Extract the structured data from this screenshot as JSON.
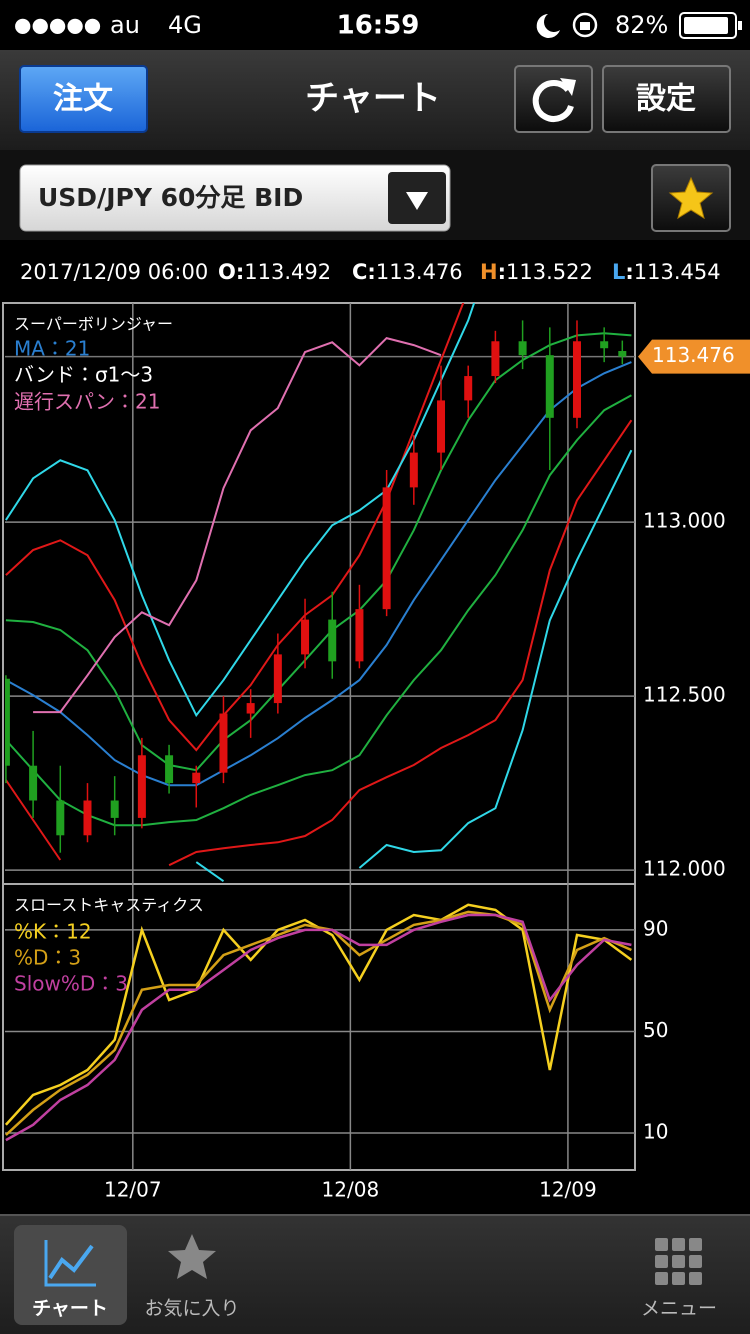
{
  "status_bar": {
    "signal": "●●●●●",
    "carrier": "au",
    "network": "4G",
    "time": "16:59",
    "battery": "82%"
  },
  "nav": {
    "order_button": "注文",
    "title": "チャート",
    "settings_button": "設定"
  },
  "selector": {
    "symbol": "USD/JPY 60分足 BID"
  },
  "quote": {
    "datetime": "2017/12/09 06:00",
    "separator": ":",
    "items": [
      {
        "label": "O",
        "value": 113.492,
        "color": "#ffffff"
      },
      {
        "label": "C",
        "value": 113.476,
        "color": "#ffffff"
      },
      {
        "label": "H",
        "value": 113.522,
        "color": "#f0902a"
      },
      {
        "label": "L",
        "value": 113.454,
        "color": "#4aa8f0"
      }
    ]
  },
  "chart_data": [
    {
      "type": "candlestick",
      "title": "スーパーボリンジャー",
      "xlim": [
        -14.1,
        55.4
      ],
      "xticks": [
        {
          "value": 0,
          "label": "12/07"
        },
        {
          "value": 24,
          "label": "12/08"
        },
        {
          "value": 48,
          "label": "12/09"
        }
      ],
      "ylim": [
        111.96,
        113.63
      ],
      "yticks": [
        {
          "value": 112,
          "label": "112.000"
        },
        {
          "value": 112.5,
          "label": "112.500"
        },
        {
          "value": 113,
          "label": "113.000"
        }
      ],
      "grid": true,
      "last_price": 113.476,
      "last_price_color": "#f0902a",
      "x": [
        -14,
        -11,
        -8,
        -5,
        -2,
        1,
        4,
        7,
        10,
        13,
        16,
        19,
        22,
        25,
        28,
        31,
        34,
        37,
        40,
        43,
        46,
        49,
        52,
        55
      ],
      "candles": {
        "up_color": "#e01010",
        "down_color": "#20a020",
        "x": [
          -14,
          -11,
          -8,
          -5,
          -2,
          1,
          4,
          7,
          10,
          13,
          16,
          19,
          22,
          25,
          28,
          31,
          34,
          37,
          40,
          43,
          46,
          49,
          52,
          54
        ],
        "open": [
          112.55,
          112.3,
          112.2,
          112.1,
          112.2,
          112.15,
          112.33,
          112.25,
          112.28,
          112.45,
          112.48,
          112.62,
          112.72,
          112.6,
          112.75,
          113.1,
          113.2,
          113.35,
          113.42,
          113.52,
          113.48,
          113.3,
          113.52,
          113.492
        ],
        "high": [
          112.56,
          112.4,
          112.3,
          112.25,
          112.27,
          112.38,
          112.36,
          112.3,
          112.5,
          112.52,
          112.68,
          112.78,
          112.8,
          112.82,
          113.15,
          113.25,
          113.45,
          113.45,
          113.55,
          113.58,
          113.56,
          113.58,
          113.56,
          113.522
        ],
        "low": [
          112.25,
          112.15,
          112.05,
          112.08,
          112.1,
          112.12,
          112.22,
          112.18,
          112.25,
          112.38,
          112.45,
          112.58,
          112.55,
          112.58,
          112.73,
          113.05,
          113.15,
          113.3,
          113.4,
          113.44,
          113.15,
          113.27,
          113.46,
          113.454
        ],
        "close": [
          112.3,
          112.2,
          112.1,
          112.2,
          112.15,
          112.33,
          112.25,
          112.28,
          112.45,
          112.48,
          112.62,
          112.72,
          112.6,
          112.75,
          113.1,
          113.2,
          113.35,
          113.42,
          113.52,
          113.48,
          113.3,
          113.52,
          113.5,
          113.476
        ]
      },
      "series": [
        {
          "name": "MA：21",
          "color": "#2a7fd0",
          "values": [
            112.546,
            112.503,
            112.454,
            112.388,
            112.316,
            112.273,
            112.244,
            112.244,
            112.287,
            112.33,
            112.379,
            112.437,
            112.489,
            112.546,
            112.647,
            112.776,
            112.891,
            113.006,
            113.121,
            113.221,
            113.322,
            113.385,
            113.428,
            113.46
          ]
        },
        {
          "name": "遅行スパン：21",
          "color": "#e070b0",
          "values": [
            null,
            112.454,
            112.454,
            112.56,
            112.67,
            112.741,
            112.704,
            112.833,
            113.098,
            113.264,
            113.328,
            113.489,
            113.517,
            113.451,
            113.529,
            113.509,
            113.48,
            null,
            null,
            null,
            null,
            null,
            null,
            null
          ]
        }
      ],
      "bands": {
        "name": "バンド：σ1〜3",
        "lines": [
          {
            "color": "#20b040",
            "values": [
              112.718,
              112.713,
              112.69,
              112.632,
              112.517,
              112.359,
              112.302,
              112.287,
              112.374,
              112.431,
              112.517,
              112.603,
              112.69,
              112.747,
              112.833,
              112.977,
              113.149,
              113.293,
              113.408,
              113.466,
              113.509,
              113.537,
              113.543,
              113.537
            ]
          },
          {
            "color": "#20b040",
            "values": [
              112.374,
              112.287,
              112.201,
              112.158,
              112.129,
              112.129,
              112.138,
              112.144,
              112.178,
              112.216,
              112.244,
              112.273,
              112.287,
              112.33,
              112.445,
              112.546,
              112.632,
              112.747,
              112.848,
              112.977,
              113.135,
              113.236,
              113.322,
              113.365
            ]
          },
          {
            "color": "#e01818",
            "values": [
              112.848,
              112.92,
              112.948,
              112.905,
              112.776,
              112.589,
              112.431,
              112.345,
              112.445,
              112.532,
              112.647,
              112.733,
              112.79,
              112.905,
              113.063,
              113.264,
              113.466,
              113.667,
              null,
              null,
              null,
              null,
              null,
              null
            ]
          },
          {
            "color": "#e01818",
            "values": [
              112.259,
              112.144,
              112.029,
              null,
              null,
              null,
              112.014,
              112.052,
              112.063,
              112.072,
              112.08,
              112.098,
              112.144,
              112.23,
              112.267,
              112.302,
              112.351,
              112.388,
              112.431,
              112.546,
              112.862,
              113.063,
              113.178,
              113.293
            ]
          },
          {
            "color": "#30d8e8",
            "values": [
              113.006,
              113.126,
              113.178,
              113.149,
              113.006,
              112.79,
              112.603,
              112.445,
              112.546,
              112.661,
              112.776,
              112.891,
              112.991,
              113.034,
              113.092,
              113.236,
              113.408,
              113.58,
              113.81,
              null,
              null,
              null,
              null,
              null
            ]
          },
          {
            "color": "#30d8e8",
            "values": [
              null,
              null,
              null,
              null,
              null,
              null,
              null,
              112.023,
              111.968,
              null,
              null,
              null,
              null,
              112.006,
              112.072,
              112.052,
              112.057,
              112.135,
              112.178,
              112.402,
              112.718,
              112.891,
              113.049,
              113.207
            ]
          }
        ]
      }
    },
    {
      "type": "line",
      "title": "スローストキャスティクス",
      "xlim": [
        -14.1,
        55.4
      ],
      "ylim": [
        -4.6,
        108.1
      ],
      "yticks": [
        10,
        50,
        90
      ],
      "grid": true,
      "x": [
        -14,
        -11,
        -8,
        -5,
        -2,
        1,
        4,
        7,
        10,
        13,
        16,
        19,
        22,
        25,
        28,
        31,
        34,
        37,
        40,
        43,
        46,
        49,
        52,
        55
      ],
      "series": [
        {
          "name": "%K：12",
          "color": "#f5d020",
          "values": [
            13.2,
            25.0,
            28.9,
            34.8,
            46.7,
            90,
            62.4,
            66.4,
            90,
            78.2,
            90,
            93.9,
            88.0,
            70.3,
            90,
            95.9,
            93.9,
            99.9,
            97.9,
            90,
            34.8,
            88.0,
            86.1,
            78.2
          ]
        },
        {
          "name": "%D：3",
          "color": "#d4a017",
          "values": [
            9.2,
            19.1,
            27.0,
            32.9,
            42.7,
            66.4,
            68.3,
            68.3,
            80.1,
            84.1,
            88.0,
            92.0,
            90.0,
            80.1,
            86.1,
            92.0,
            93.9,
            97.1,
            95.9,
            92.0,
            58.5,
            82.1,
            86.8,
            82.1
          ]
        },
        {
          "name": "Slow%D：3",
          "color": "#c040a0",
          "values": [
            7.2,
            13.2,
            23.0,
            28.9,
            38.8,
            58.5,
            66.4,
            66.4,
            74.2,
            82.1,
            86.8,
            90.0,
            90.0,
            84.1,
            84.1,
            90.0,
            93.2,
            95.9,
            95.9,
            93.2,
            62.4,
            76.2,
            86.1,
            84.1
          ]
        }
      ]
    }
  ],
  "tab_bar": {
    "items": [
      "チャート",
      "お気に入り",
      "メニュー"
    ]
  }
}
